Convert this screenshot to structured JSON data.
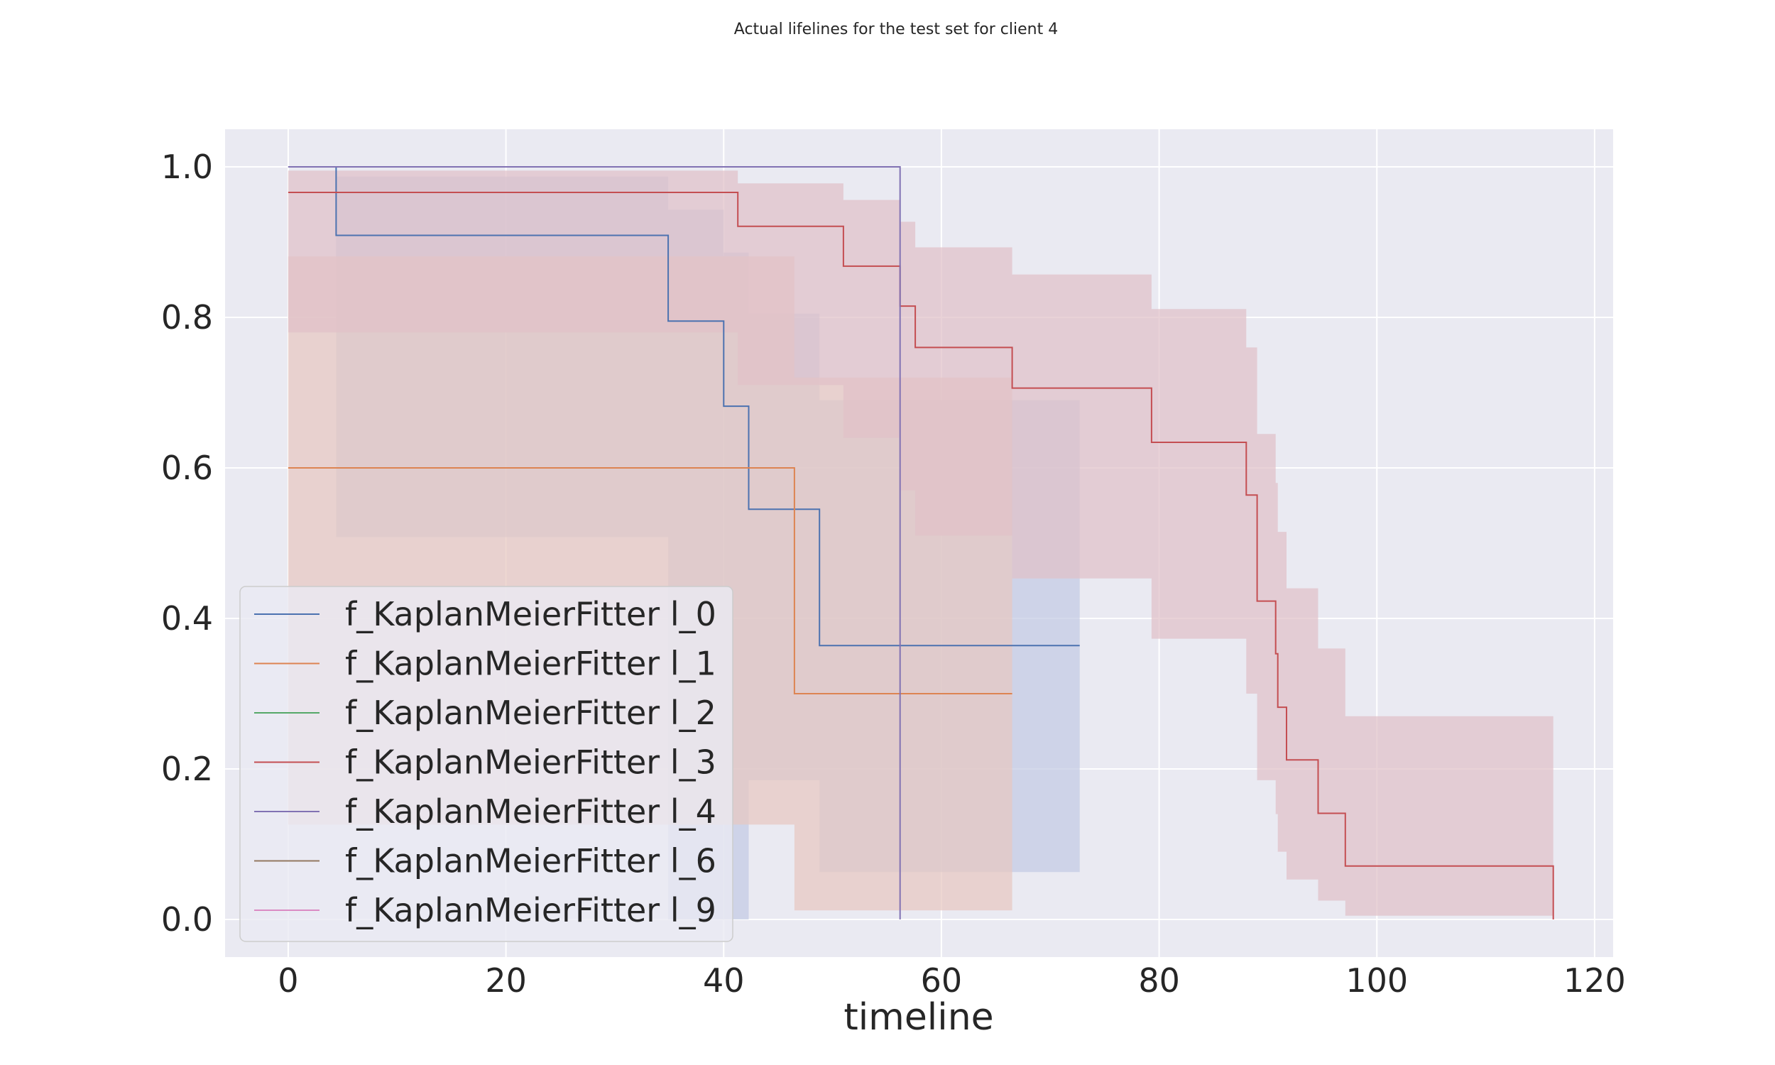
{
  "chart_data": {
    "type": "line",
    "title": "Actual lifelines for the test set for client 4",
    "xlabel": "timeline",
    "ylabel": "",
    "xlim": [
      -5.8,
      121.7
    ],
    "ylim": [
      -0.05,
      1.05
    ],
    "xticks": [
      0,
      20,
      40,
      60,
      80,
      100,
      120
    ],
    "yticks": [
      0.0,
      0.2,
      0.4,
      0.6,
      0.8,
      1.0
    ],
    "ytick_labels": [
      "0.0",
      "0.2",
      "0.4",
      "0.6",
      "0.8",
      "1.0"
    ],
    "grid": true,
    "legend_position": "lower-left",
    "series": [
      {
        "name": "f_KaplanMeierFitter l_0",
        "color": "#4c72b0",
        "x": [
          0,
          4.4,
          34.9,
          40.0,
          42.3,
          48.8,
          72.7
        ],
        "y": [
          1.0,
          0.909,
          0.795,
          0.682,
          0.545,
          0.364,
          0.364
        ],
        "ci_lower": [
          1.0,
          0.508,
          0.0,
          0.0,
          0.185,
          0.063,
          0.063
        ],
        "ci_upper": [
          1.0,
          0.987,
          0.943,
          0.886,
          0.805,
          0.69,
          0.69
        ],
        "ci_color": "#c4cbe3"
      },
      {
        "name": "f_KaplanMeierFitter l_1",
        "color": "#dd8452",
        "x": [
          0,
          46.5,
          66.5
        ],
        "y": [
          0.6,
          0.3,
          0.3
        ],
        "ci_lower": [
          0.126,
          0.012,
          0.012
        ],
        "ci_upper": [
          0.881,
          0.72,
          0.72
        ],
        "ci_color": "#e8c8c0"
      },
      {
        "name": "f_KaplanMeierFitter l_2",
        "color": "#55a868",
        "x": [
          14.4,
          28.5
        ],
        "y": [
          1.0,
          1.0
        ],
        "ci_lower": [],
        "ci_upper": [],
        "ci_color": ""
      },
      {
        "name": "f_KaplanMeierFitter l_3",
        "color": "#c44e52",
        "x": [
          0,
          41.3,
          51.0,
          56.2,
          57.6,
          66.5,
          79.3,
          88.0,
          89.0,
          90.7,
          90.9,
          91.7,
          94.6,
          97.1,
          116.2
        ],
        "y": [
          0.966,
          0.921,
          0.868,
          0.815,
          0.76,
          0.706,
          0.634,
          0.564,
          0.423,
          0.353,
          0.282,
          0.212,
          0.141,
          0.071,
          0.0
        ],
        "ci_lower": [
          0.78,
          0.71,
          0.64,
          0.57,
          0.51,
          0.453,
          0.373,
          0.3,
          0.185,
          0.14,
          0.09,
          0.053,
          0.025,
          0.005,
          0.005
        ],
        "ci_upper": [
          0.995,
          0.978,
          0.956,
          0.927,
          0.893,
          0.857,
          0.811,
          0.76,
          0.645,
          0.58,
          0.515,
          0.44,
          0.36,
          0.27,
          0.27
        ],
        "ci_color": "#e1c0c8"
      },
      {
        "name": "f_KaplanMeierFitter l_4",
        "color": "#8172b3",
        "x": [
          0,
          56.2
        ],
        "y": [
          1.0,
          0.0
        ],
        "ci_lower": [],
        "ci_upper": [],
        "ci_color": ""
      },
      {
        "name": "f_KaplanMeierFitter l_6",
        "color": "#937860",
        "x": [],
        "y": [],
        "ci_lower": [],
        "ci_upper": [],
        "ci_color": ""
      },
      {
        "name": "f_KaplanMeierFitter l_9",
        "color": "#da8bc3",
        "x": [],
        "y": [],
        "ci_lower": [],
        "ci_upper": [],
        "ci_color": ""
      }
    ]
  }
}
